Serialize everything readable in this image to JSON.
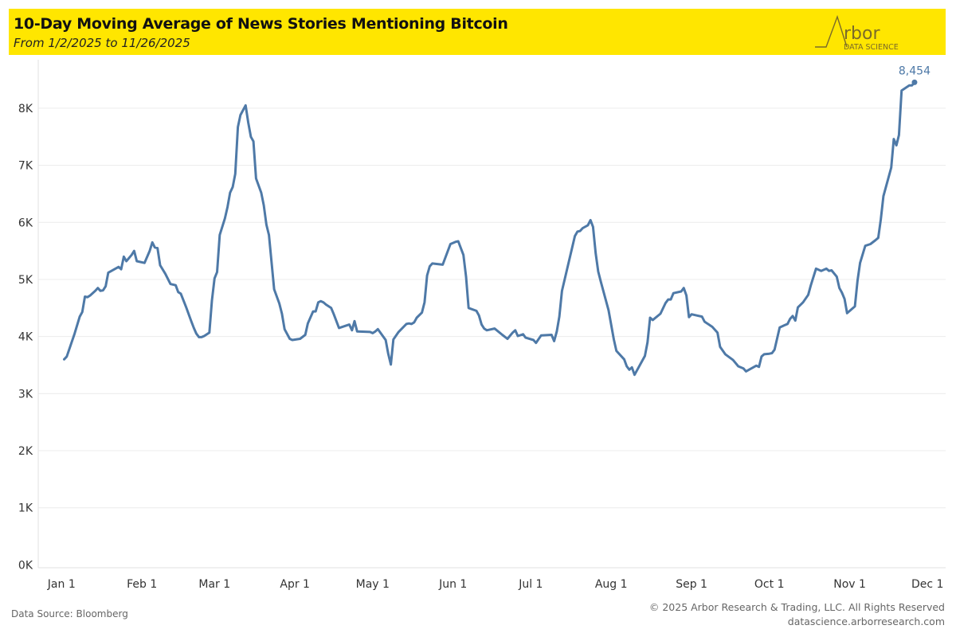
{
  "header": {
    "title": "10-Day Moving Average of News Stories Mentioning Bitcoin",
    "subtitle": "From 1/2/2025 to 11/26/2025",
    "logo": {
      "name_text": "rbor",
      "tagline": "DATA SCIENCE"
    }
  },
  "footer": {
    "source": "Data Source: Bloomberg",
    "copyright": "© 2025 Arbor Research & Trading, LLC. All Rights Reserved",
    "url": "datascience.arborresearch.com"
  },
  "colors": {
    "header_bg": "#FFE600",
    "line": "#4e79a7",
    "grid": "#ececec"
  },
  "chart_data": {
    "type": "line",
    "title": "10-Day Moving Average of News Stories Mentioning Bitcoin",
    "subtitle": "From 1/2/2025 to 11/26/2025",
    "xlabel": "",
    "ylabel": "",
    "x_ticks": [
      {
        "date": "2025-01-01",
        "label": "Jan 1"
      },
      {
        "date": "2025-02-01",
        "label": "Feb 1"
      },
      {
        "date": "2025-03-01",
        "label": "Mar 1"
      },
      {
        "date": "2025-04-01",
        "label": "Apr 1"
      },
      {
        "date": "2025-05-01",
        "label": "May 1"
      },
      {
        "date": "2025-06-01",
        "label": "Jun 1"
      },
      {
        "date": "2025-07-01",
        "label": "Jul 1"
      },
      {
        "date": "2025-08-01",
        "label": "Aug 1"
      },
      {
        "date": "2025-09-01",
        "label": "Sep 1"
      },
      {
        "date": "2025-10-01",
        "label": "Oct 1"
      },
      {
        "date": "2025-11-01",
        "label": "Nov 1"
      },
      {
        "date": "2025-12-01",
        "label": "Dec 1"
      }
    ],
    "y_ticks": [
      {
        "value": 0,
        "label": "0K"
      },
      {
        "value": 1000,
        "label": "1K"
      },
      {
        "value": 2000,
        "label": "2K"
      },
      {
        "value": 3000,
        "label": "3K"
      },
      {
        "value": 4000,
        "label": "4K"
      },
      {
        "value": 5000,
        "label": "5K"
      },
      {
        "value": 6000,
        "label": "6K"
      },
      {
        "value": 7000,
        "label": "7K"
      },
      {
        "value": 8000,
        "label": "8K"
      }
    ],
    "xlim": [
      "2024-12-23",
      "2025-12-08"
    ],
    "ylim": [
      -50,
      8850
    ],
    "grid": true,
    "legend": "none",
    "end_label": "8,454",
    "series": [
      {
        "points": [
          [
            "2025-01-02",
            3600
          ],
          [
            "2025-01-03",
            3650
          ],
          [
            "2025-01-06",
            4050
          ],
          [
            "2025-01-08",
            4350
          ],
          [
            "2025-01-09",
            4430
          ],
          [
            "2025-01-10",
            4700
          ],
          [
            "2025-01-11",
            4690
          ],
          [
            "2025-01-12",
            4720
          ],
          [
            "2025-01-14",
            4800
          ],
          [
            "2025-01-15",
            4850
          ],
          [
            "2025-01-16",
            4800
          ],
          [
            "2025-01-17",
            4810
          ],
          [
            "2025-01-18",
            4880
          ],
          [
            "2025-01-19",
            5120
          ],
          [
            "2025-01-21",
            5170
          ],
          [
            "2025-01-23",
            5220
          ],
          [
            "2025-01-24",
            5180
          ],
          [
            "2025-01-25",
            5400
          ],
          [
            "2025-01-26",
            5320
          ],
          [
            "2025-01-28",
            5430
          ],
          [
            "2025-01-29",
            5500
          ],
          [
            "2025-01-30",
            5320
          ],
          [
            "2025-02-02",
            5290
          ],
          [
            "2025-02-04",
            5500
          ],
          [
            "2025-02-05",
            5650
          ],
          [
            "2025-02-06",
            5560
          ],
          [
            "2025-02-07",
            5550
          ],
          [
            "2025-02-08",
            5250
          ],
          [
            "2025-02-10",
            5100
          ],
          [
            "2025-02-12",
            4920
          ],
          [
            "2025-02-14",
            4900
          ],
          [
            "2025-02-15",
            4780
          ],
          [
            "2025-02-16",
            4750
          ],
          [
            "2025-02-18",
            4520
          ],
          [
            "2025-02-20",
            4270
          ],
          [
            "2025-02-21",
            4150
          ],
          [
            "2025-02-22",
            4050
          ],
          [
            "2025-02-23",
            3990
          ],
          [
            "2025-02-24",
            3990
          ],
          [
            "2025-02-25",
            4010
          ],
          [
            "2025-02-27",
            4070
          ],
          [
            "2025-02-28",
            4630
          ],
          [
            "2025-03-01",
            5020
          ],
          [
            "2025-03-02",
            5130
          ],
          [
            "2025-03-03",
            5780
          ],
          [
            "2025-03-05",
            6070
          ],
          [
            "2025-03-06",
            6270
          ],
          [
            "2025-03-07",
            6520
          ],
          [
            "2025-03-08",
            6620
          ],
          [
            "2025-03-09",
            6850
          ],
          [
            "2025-03-10",
            7670
          ],
          [
            "2025-03-11",
            7880
          ],
          [
            "2025-03-13",
            8050
          ],
          [
            "2025-03-14",
            7750
          ],
          [
            "2025-03-15",
            7500
          ],
          [
            "2025-03-16",
            7420
          ],
          [
            "2025-03-17",
            6770
          ],
          [
            "2025-03-19",
            6520
          ],
          [
            "2025-03-20",
            6300
          ],
          [
            "2025-03-21",
            5960
          ],
          [
            "2025-03-22",
            5780
          ],
          [
            "2025-03-24",
            4830
          ],
          [
            "2025-03-26",
            4580
          ],
          [
            "2025-03-27",
            4400
          ],
          [
            "2025-03-28",
            4130
          ],
          [
            "2025-03-30",
            3960
          ],
          [
            "2025-03-31",
            3940
          ],
          [
            "2025-04-03",
            3960
          ],
          [
            "2025-04-05",
            4030
          ],
          [
            "2025-04-06",
            4230
          ],
          [
            "2025-04-08",
            4440
          ],
          [
            "2025-04-09",
            4440
          ],
          [
            "2025-04-10",
            4600
          ],
          [
            "2025-04-11",
            4620
          ],
          [
            "2025-04-12",
            4600
          ],
          [
            "2025-04-13",
            4560
          ],
          [
            "2025-04-15",
            4500
          ],
          [
            "2025-04-16",
            4390
          ],
          [
            "2025-04-18",
            4150
          ],
          [
            "2025-04-22",
            4210
          ],
          [
            "2025-04-23",
            4110
          ],
          [
            "2025-04-24",
            4270
          ],
          [
            "2025-04-25",
            4090
          ],
          [
            "2025-04-30",
            4080
          ],
          [
            "2025-05-01",
            4060
          ],
          [
            "2025-05-02",
            4090
          ],
          [
            "2025-05-03",
            4130
          ],
          [
            "2025-05-06",
            3940
          ],
          [
            "2025-05-07",
            3700
          ],
          [
            "2025-05-08",
            3510
          ],
          [
            "2025-05-09",
            3950
          ],
          [
            "2025-05-11",
            4080
          ],
          [
            "2025-05-14",
            4220
          ],
          [
            "2025-05-15",
            4230
          ],
          [
            "2025-05-16",
            4220
          ],
          [
            "2025-05-17",
            4250
          ],
          [
            "2025-05-18",
            4330
          ],
          [
            "2025-05-20",
            4420
          ],
          [
            "2025-05-21",
            4600
          ],
          [
            "2025-05-22",
            5070
          ],
          [
            "2025-05-23",
            5230
          ],
          [
            "2025-05-24",
            5280
          ],
          [
            "2025-05-28",
            5260
          ],
          [
            "2025-05-31",
            5620
          ],
          [
            "2025-06-02",
            5660
          ],
          [
            "2025-06-03",
            5670
          ],
          [
            "2025-06-05",
            5430
          ],
          [
            "2025-06-06",
            5050
          ],
          [
            "2025-06-07",
            4500
          ],
          [
            "2025-06-10",
            4450
          ],
          [
            "2025-06-11",
            4370
          ],
          [
            "2025-06-12",
            4210
          ],
          [
            "2025-06-13",
            4140
          ],
          [
            "2025-06-14",
            4110
          ],
          [
            "2025-06-17",
            4140
          ],
          [
            "2025-06-20",
            4030
          ],
          [
            "2025-06-22",
            3960
          ],
          [
            "2025-06-24",
            4070
          ],
          [
            "2025-06-25",
            4110
          ],
          [
            "2025-06-26",
            4010
          ],
          [
            "2025-06-28",
            4040
          ],
          [
            "2025-06-29",
            3980
          ],
          [
            "2025-07-02",
            3940
          ],
          [
            "2025-07-03",
            3890
          ],
          [
            "2025-07-05",
            4020
          ],
          [
            "2025-07-09",
            4030
          ],
          [
            "2025-07-10",
            3920
          ],
          [
            "2025-07-11",
            4090
          ],
          [
            "2025-07-12",
            4350
          ],
          [
            "2025-07-13",
            4800
          ],
          [
            "2025-07-18",
            5760
          ],
          [
            "2025-07-19",
            5840
          ],
          [
            "2025-07-20",
            5850
          ],
          [
            "2025-07-21",
            5900
          ],
          [
            "2025-07-23",
            5950
          ],
          [
            "2025-07-24",
            6040
          ],
          [
            "2025-07-25",
            5920
          ],
          [
            "2025-07-26",
            5460
          ],
          [
            "2025-07-27",
            5140
          ],
          [
            "2025-07-28",
            4960
          ],
          [
            "2025-07-31",
            4460
          ],
          [
            "2025-08-02",
            3950
          ],
          [
            "2025-08-03",
            3750
          ],
          [
            "2025-08-06",
            3600
          ],
          [
            "2025-08-07",
            3480
          ],
          [
            "2025-08-08",
            3420
          ],
          [
            "2025-08-09",
            3460
          ],
          [
            "2025-08-10",
            3330
          ],
          [
            "2025-08-14",
            3660
          ],
          [
            "2025-08-15",
            3900
          ],
          [
            "2025-08-16",
            4330
          ],
          [
            "2025-08-17",
            4290
          ],
          [
            "2025-08-20",
            4400
          ],
          [
            "2025-08-22",
            4590
          ],
          [
            "2025-08-23",
            4650
          ],
          [
            "2025-08-24",
            4650
          ],
          [
            "2025-08-25",
            4760
          ],
          [
            "2025-08-28",
            4790
          ],
          [
            "2025-08-29",
            4850
          ],
          [
            "2025-08-30",
            4720
          ],
          [
            "2025-08-31",
            4340
          ],
          [
            "2025-09-01",
            4390
          ],
          [
            "2025-09-03",
            4370
          ],
          [
            "2025-09-05",
            4350
          ],
          [
            "2025-09-06",
            4260
          ],
          [
            "2025-09-09",
            4170
          ],
          [
            "2025-09-11",
            4070
          ],
          [
            "2025-09-12",
            3820
          ],
          [
            "2025-09-14",
            3690
          ],
          [
            "2025-09-17",
            3590
          ],
          [
            "2025-09-19",
            3480
          ],
          [
            "2025-09-21",
            3440
          ],
          [
            "2025-09-22",
            3390
          ],
          [
            "2025-09-24",
            3440
          ],
          [
            "2025-09-26",
            3490
          ],
          [
            "2025-09-27",
            3470
          ],
          [
            "2025-09-28",
            3650
          ],
          [
            "2025-09-29",
            3690
          ],
          [
            "2025-10-01",
            3700
          ],
          [
            "2025-10-02",
            3710
          ],
          [
            "2025-10-03",
            3770
          ],
          [
            "2025-10-05",
            4160
          ],
          [
            "2025-10-07",
            4200
          ],
          [
            "2025-10-08",
            4220
          ],
          [
            "2025-10-09",
            4310
          ],
          [
            "2025-10-10",
            4360
          ],
          [
            "2025-10-11",
            4280
          ],
          [
            "2025-10-12",
            4510
          ],
          [
            "2025-10-14",
            4600
          ],
          [
            "2025-10-16",
            4730
          ],
          [
            "2025-10-17",
            4900
          ],
          [
            "2025-10-19",
            5190
          ],
          [
            "2025-10-21",
            5150
          ],
          [
            "2025-10-23",
            5190
          ],
          [
            "2025-10-24",
            5150
          ],
          [
            "2025-10-25",
            5160
          ],
          [
            "2025-10-27",
            5050
          ],
          [
            "2025-10-28",
            4850
          ],
          [
            "2025-10-29",
            4770
          ],
          [
            "2025-10-30",
            4660
          ],
          [
            "2025-10-31",
            4410
          ],
          [
            "2025-11-03",
            4530
          ],
          [
            "2025-11-04",
            4980
          ],
          [
            "2025-11-05",
            5290
          ],
          [
            "2025-11-07",
            5590
          ],
          [
            "2025-11-09",
            5620
          ],
          [
            "2025-11-11",
            5690
          ],
          [
            "2025-11-12",
            5730
          ],
          [
            "2025-11-13",
            6050
          ],
          [
            "2025-11-14",
            6460
          ],
          [
            "2025-11-17",
            6960
          ],
          [
            "2025-11-18",
            7460
          ],
          [
            "2025-11-19",
            7350
          ],
          [
            "2025-11-20",
            7530
          ],
          [
            "2025-11-21",
            8310
          ],
          [
            "2025-11-24",
            8400
          ],
          [
            "2025-11-25",
            8400
          ],
          [
            "2025-11-26",
            8454
          ]
        ]
      }
    ]
  }
}
